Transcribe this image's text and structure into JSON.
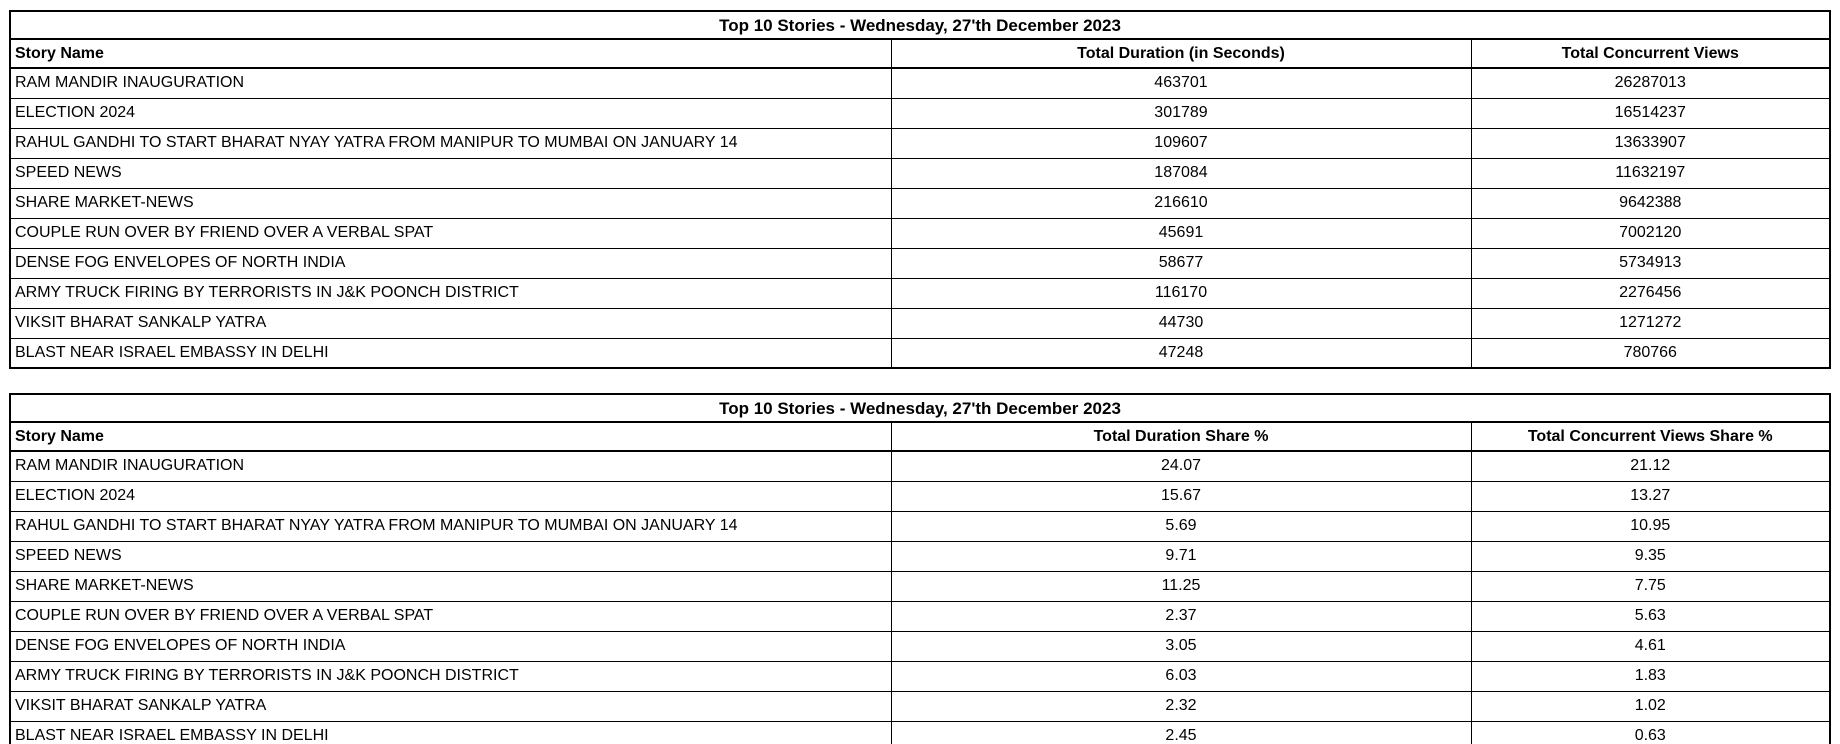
{
  "style": {
    "background": "#ffffff",
    "text_color": "#000000",
    "border_color": "#000000"
  },
  "chart_data": [
    {
      "type": "table",
      "title": "Top 10 Stories - Wednesday, 27'th December 2023",
      "columns": [
        "Story Name",
        "Total Duration (in Seconds)",
        "Total Concurrent Views"
      ],
      "rows": [
        [
          "RAM MANDIR INAUGURATION",
          "463701",
          "26287013"
        ],
        [
          "ELECTION 2024",
          "301789",
          "16514237"
        ],
        [
          "RAHUL GANDHI TO START BHARAT NYAY YATRA FROM MANIPUR TO MUMBAI ON JANUARY 14",
          "109607",
          "13633907"
        ],
        [
          "SPEED NEWS",
          "187084",
          "11632197"
        ],
        [
          "SHARE MARKET-NEWS",
          "216610",
          "9642388"
        ],
        [
          "COUPLE RUN OVER BY FRIEND OVER A VERBAL SPAT",
          "45691",
          "7002120"
        ],
        [
          "DENSE FOG ENVELOPES OF NORTH INDIA",
          "58677",
          "5734913"
        ],
        [
          "ARMY TRUCK FIRING BY TERRORISTS IN J&K POONCH DISTRICT",
          "116170",
          "2276456"
        ],
        [
          "VIKSIT BHARAT SANKALP YATRA",
          "44730",
          "1271272"
        ],
        [
          "BLAST NEAR ISRAEL EMBASSY IN DELHI",
          "47248",
          "780766"
        ]
      ]
    },
    {
      "type": "table",
      "title": "Top 10 Stories - Wednesday, 27'th December 2023",
      "columns": [
        "Story Name",
        "Total Duration Share %",
        "Total Concurrent Views Share %"
      ],
      "rows": [
        [
          "RAM MANDIR INAUGURATION",
          "24.07",
          "21.12"
        ],
        [
          "ELECTION 2024",
          "15.67",
          "13.27"
        ],
        [
          "RAHUL GANDHI TO START BHARAT NYAY YATRA FROM MANIPUR TO MUMBAI ON JANUARY 14",
          "5.69",
          "10.95"
        ],
        [
          "SPEED NEWS",
          "9.71",
          "9.35"
        ],
        [
          "SHARE MARKET-NEWS",
          "11.25",
          "7.75"
        ],
        [
          "COUPLE RUN OVER BY FRIEND OVER A VERBAL SPAT",
          "2.37",
          "5.63"
        ],
        [
          "DENSE FOG ENVELOPES OF NORTH INDIA",
          "3.05",
          "4.61"
        ],
        [
          "ARMY TRUCK FIRING BY TERRORISTS IN J&K POONCH DISTRICT",
          "6.03",
          "1.83"
        ],
        [
          "VIKSIT BHARAT SANKALP YATRA",
          "2.32",
          "1.02"
        ],
        [
          "BLAST NEAR ISRAEL EMBASSY IN DELHI",
          "2.45",
          "0.63"
        ]
      ]
    }
  ]
}
